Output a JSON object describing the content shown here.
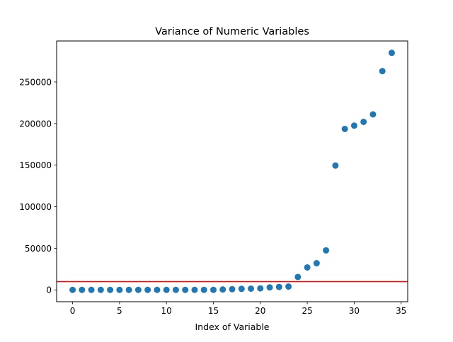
{
  "chart_data": {
    "type": "scatter",
    "title": "Variance of Numeric Variables",
    "xlabel": "Index of Variable",
    "ylabel": "",
    "xlim": [
      -1.7,
      35.7
    ],
    "ylim": [
      -14250,
      299250
    ],
    "xticks": [
      0,
      5,
      10,
      15,
      20,
      25,
      30,
      35
    ],
    "yticks": [
      0,
      50000,
      100000,
      150000,
      200000,
      250000
    ],
    "xtick_labels": [
      "0",
      "5",
      "10",
      "15",
      "20",
      "25",
      "30",
      "35"
    ],
    "ytick_labels": [
      "0",
      "50000",
      "100000",
      "150000",
      "200000",
      "250000"
    ],
    "grid": false,
    "series": [
      {
        "x": [
          0,
          1,
          2,
          3,
          4,
          5,
          6,
          7,
          8,
          9,
          10,
          11,
          12,
          13,
          14,
          15,
          16,
          17,
          18,
          19,
          20,
          21,
          22,
          23,
          24,
          25,
          26,
          27,
          28,
          29,
          30,
          31,
          32,
          33,
          34
        ],
        "y": [
          0,
          0,
          0,
          0,
          0,
          0,
          0,
          0,
          0,
          0,
          0,
          0,
          0,
          0,
          0,
          0,
          500,
          800,
          1200,
          1500,
          1800,
          3000,
          3500,
          4000,
          15500,
          27000,
          32000,
          47500,
          149500,
          193500,
          197500,
          202000,
          211000,
          263000,
          285000
        ],
        "color": "#1f77b4"
      }
    ],
    "reference_line": {
      "orientation": "horizontal",
      "y": 10000,
      "color": "#ff0000"
    }
  }
}
